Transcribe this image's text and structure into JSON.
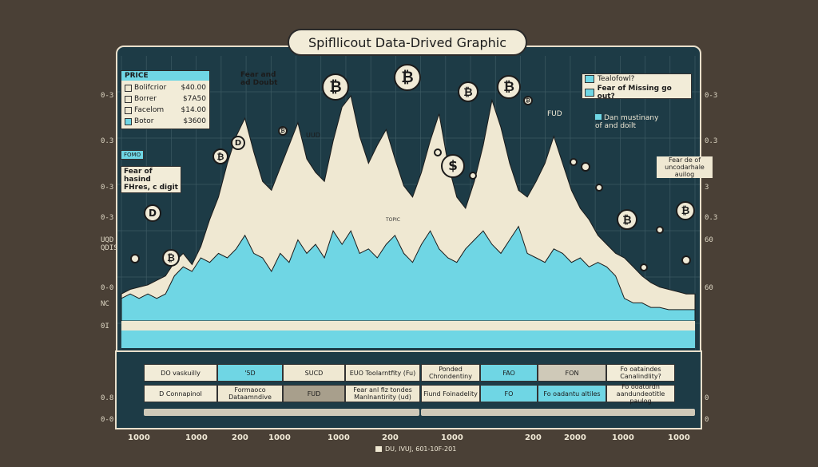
{
  "title": "Spifllicout Data-Drived Graphic",
  "colors": {
    "background": "#4a4036",
    "panel": "#1d3b46",
    "cream": "#efe8d2",
    "cyan": "#6fd6e4",
    "border": "#e9e0cc"
  },
  "chart_data": {
    "type": "area",
    "series": [
      {
        "name": "price-cream",
        "values": [
          0.12,
          0.14,
          0.15,
          0.16,
          0.18,
          0.2,
          0.26,
          0.3,
          0.25,
          0.33,
          0.45,
          0.55,
          0.7,
          0.82,
          0.9,
          0.75,
          0.62,
          0.58,
          0.68,
          0.78,
          0.88,
          0.72,
          0.66,
          0.62,
          0.8,
          0.95,
          1.0,
          0.82,
          0.7,
          0.78,
          0.85,
          0.72,
          0.6,
          0.55,
          0.66,
          0.8,
          0.92,
          0.7,
          0.55,
          0.5,
          0.62,
          0.78,
          0.98,
          0.86,
          0.7,
          0.58,
          0.55,
          0.62,
          0.7,
          0.82,
          0.7,
          0.58,
          0.5,
          0.45,
          0.38,
          0.34,
          0.3,
          0.28,
          0.24,
          0.2,
          0.17,
          0.15,
          0.14,
          0.13,
          0.12,
          0.12
        ]
      },
      {
        "name": "price-cyan",
        "values": [
          0.1,
          0.12,
          0.1,
          0.12,
          0.1,
          0.12,
          0.2,
          0.24,
          0.22,
          0.28,
          0.26,
          0.3,
          0.28,
          0.32,
          0.38,
          0.3,
          0.28,
          0.22,
          0.3,
          0.26,
          0.36,
          0.3,
          0.34,
          0.28,
          0.4,
          0.34,
          0.4,
          0.3,
          0.32,
          0.28,
          0.34,
          0.38,
          0.3,
          0.26,
          0.34,
          0.4,
          0.32,
          0.28,
          0.26,
          0.32,
          0.36,
          0.4,
          0.34,
          0.3,
          0.36,
          0.42,
          0.3,
          0.28,
          0.26,
          0.32,
          0.3,
          0.26,
          0.28,
          0.24,
          0.26,
          0.24,
          0.2,
          0.1,
          0.08,
          0.08,
          0.06,
          0.06,
          0.05,
          0.05,
          0.05,
          0.05
        ]
      }
    ],
    "y_ticks_left": [
      "0-3",
      "0.3",
      "0-3",
      "0-3",
      "UQD",
      "QDIS",
      "0-0",
      "NC",
      "0I",
      "0.8",
      "0-0"
    ],
    "y_ticks_right": [
      "0-3",
      "0.3",
      "3",
      "0.3",
      "60",
      "60",
      "0",
      "0"
    ],
    "x_ticks": [
      "1000",
      "1000",
      "200",
      "1000",
      "1000",
      "200",
      "1000",
      "200",
      "2000",
      "1000",
      "1000"
    ],
    "footer_note": "DU, IVUJ, 601-10F-201"
  },
  "legend": {
    "header": "PRICE",
    "items": [
      {
        "label": "Bolifcrior",
        "value": "$40.00"
      },
      {
        "label": "Borrer",
        "value": "$7A50"
      },
      {
        "label": "Facelom",
        "value": "$14.00"
      },
      {
        "label": "Botor",
        "value": "$3600"
      }
    ]
  },
  "annotations": {
    "fomo_tag": "FOMO",
    "fear_rising": "Fear of hasind FHres, c digit",
    "fear_and_doubt": "Fear and ad Doubt",
    "fud_top": "FUD",
    "uud": "UUD",
    "tease_box": "Tealofowl?",
    "fear_missing": "Fear of Missing go out?",
    "den_mystery": "Dan mustinany of and doilt",
    "right_note": "Fear de of uncodarhale auilog",
    "fopic": "TOPIC",
    "d_badge": "D",
    "b_badge": "B",
    "dollar": "$"
  },
  "table": {
    "left": {
      "row1": [
        "DO",
        "vaskuilly",
        "'5D",
        "SUCD",
        "EUO",
        "Toolarntfity (Fu)"
      ],
      "row2": [
        "D",
        "Connapinol",
        "Formaoco Dataamndive",
        "FUD",
        "Fear anl fiz tondes Manlnantirity (ud)"
      ]
    },
    "right": {
      "row1": [
        "Ponded",
        "Chrondentiny",
        "FAO",
        "FON",
        "Fo oataindes Canalindlity?"
      ],
      "row2": [
        "Fiund",
        "Foinadelity",
        "FO",
        "Fo oadantu altiles",
        "Fo ooatordn aandundeotitle paulog"
      ]
    }
  }
}
